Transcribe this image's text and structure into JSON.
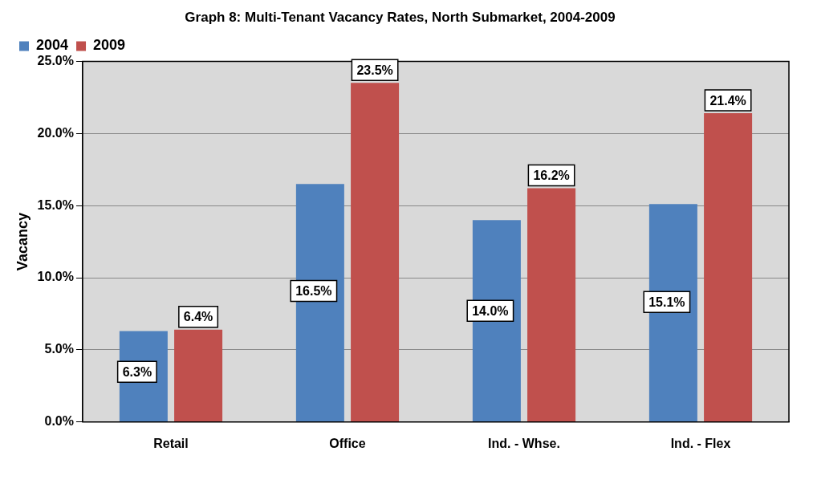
{
  "chart_data": {
    "type": "bar",
    "title": "Graph 8: Multi-Tenant Vacancy Rates, North Submarket, 2004-2009",
    "ylabel": "Vacancy",
    "categories": [
      "Retail",
      "Office",
      "Ind. - Whse.",
      "Ind. - Flex"
    ],
    "series": [
      {
        "name": "2004",
        "color": "#4f81bd",
        "values": [
          6.3,
          16.5,
          14.0,
          15.1
        ],
        "value_labels": [
          "6.3%",
          "16.5%",
          "14.0%",
          "15.1%"
        ]
      },
      {
        "name": "2009",
        "color": "#c0504d",
        "values": [
          6.4,
          23.5,
          16.2,
          21.4
        ],
        "value_labels": [
          "6.4%",
          "23.5%",
          "16.2%",
          "21.4%"
        ]
      }
    ],
    "ylim": [
      0,
      25
    ],
    "yticks": [
      {
        "value": 0,
        "label": "0.0%"
      },
      {
        "value": 5,
        "label": "5.0%"
      },
      {
        "value": 10,
        "label": "10.0%"
      },
      {
        "value": 15,
        "label": "15.0%"
      },
      {
        "value": 20,
        "label": "20.0%"
      },
      {
        "value": 25,
        "label": "25.0%"
      }
    ],
    "grid": "y",
    "legend": "top left"
  }
}
